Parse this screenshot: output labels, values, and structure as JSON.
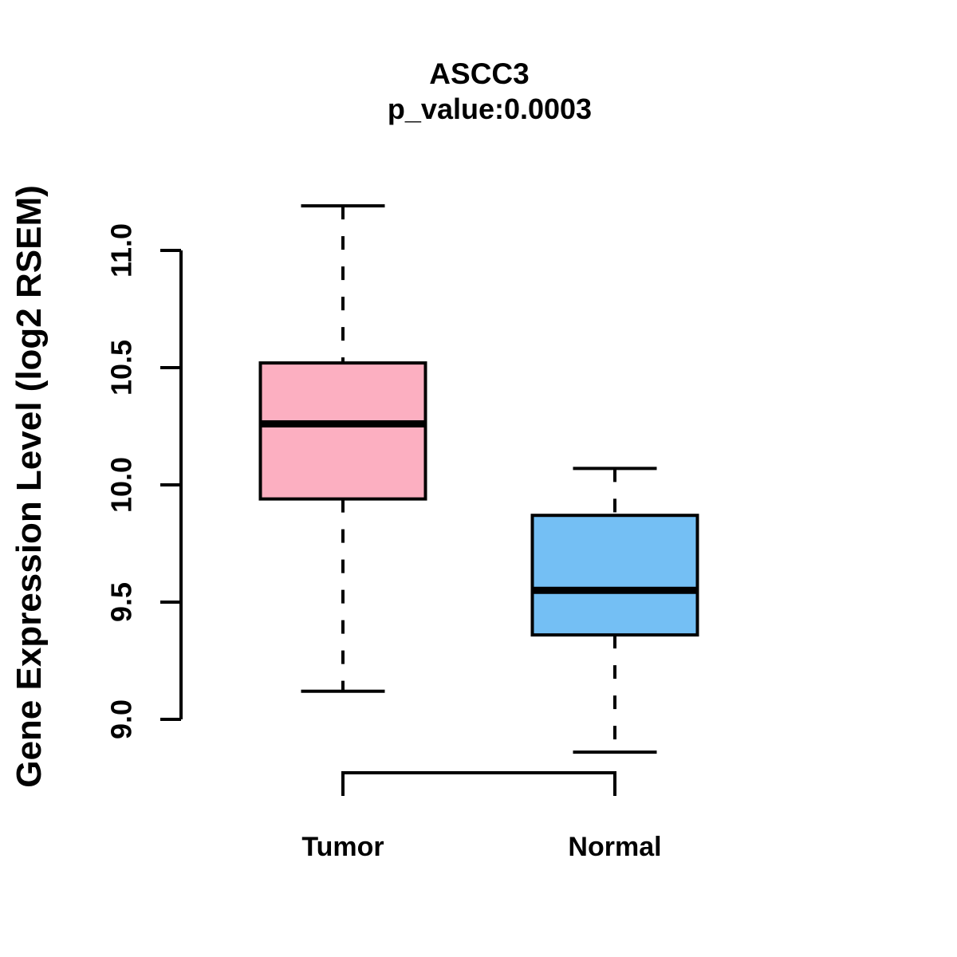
{
  "page": {
    "background": "#FFFFFF"
  },
  "chart_data": {
    "type": "boxplot",
    "title": "ASCC3",
    "subtitle": "p_value:0.0003",
    "ylabel": "Gene Expression Level (log2 RSEM)",
    "xlabel": "",
    "yticks": [
      9.0,
      9.5,
      10.0,
      10.5,
      11.0
    ],
    "ylim": [
      8.78,
      11.28
    ],
    "grid": false,
    "legend": null,
    "categories": [
      "Tumor",
      "Normal"
    ],
    "groups": [
      {
        "label": "Tumor",
        "color": "#FCAFC1",
        "stats": {
          "whisker_low": 9.12,
          "q1": 9.94,
          "median": 10.26,
          "q3": 10.52,
          "whisker_high": 11.19
        }
      },
      {
        "label": "Normal",
        "color": "#74BFF4",
        "stats": {
          "whisker_low": 8.86,
          "q1": 9.36,
          "median": 9.55,
          "q3": 9.87,
          "whisker_high": 10.07
        }
      }
    ],
    "line_color": "#000000",
    "whisker_style": "dashed"
  }
}
